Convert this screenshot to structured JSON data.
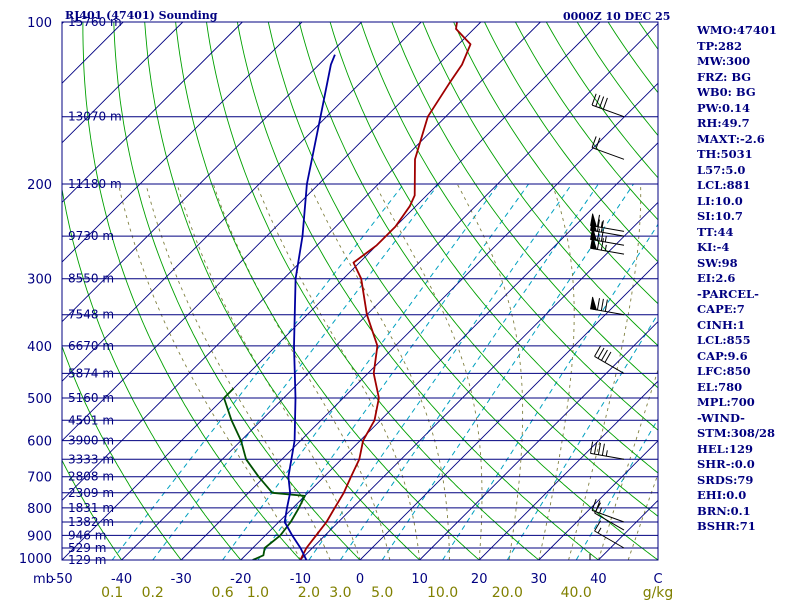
{
  "header": {
    "left": "RJ401 (47401) Sounding",
    "right": "0000Z 10 DEC 25"
  },
  "indices": [
    "WMO:47401",
    "TP:282",
    "MW:300",
    "FRZ: BG",
    "WB0: BG",
    "PW:0.14",
    "RH:49.7",
    "MAXT:-2.6",
    "TH:5031",
    "L57:5.0",
    "LCL:881",
    "LI:10.0",
    "SI:10.7",
    "TT:44",
    "KI:-4",
    "SW:98",
    "EI:2.6",
    "-PARCEL-",
    "CAPE:7",
    "CINH:1",
    "LCL:855",
    "CAP:9.6",
    "LFC:850",
    "EL:780",
    "MPL:700",
    "-WIND-",
    "STM:308/28",
    "HEL:129",
    "SHR-:0.0",
    "SRDS:79",
    "EHI:0.0",
    "BRN:0.1",
    "BSHR:71"
  ],
  "colors": {
    "frame": "#000080",
    "isobar": "#000080",
    "isotherm": "#000080",
    "dry_adiabat": "#00a000",
    "moist_adiabat": "#808040",
    "mixing_ratio": "#00a0c0",
    "temperature": "#a00000",
    "dewpoint": "#005000",
    "parcel": "#0000a0",
    "wind": "#000000",
    "olive_label": "#808000"
  },
  "chart_data": {
    "type": "line",
    "x_unit": "C",
    "y_unit": "mb",
    "y_scale": "log",
    "ylim": [
      1000,
      100
    ],
    "xlim": [
      -50,
      50
    ],
    "pressure_ticks": [
      "100",
      "200",
      "300",
      "400",
      "500",
      "600",
      "700",
      "800",
      "900",
      "1000"
    ],
    "mb_label": "mb",
    "temperature_ticks": [
      "-50",
      "-40",
      "-30",
      "-20",
      "-10",
      "0",
      "10",
      "20",
      "30",
      "40"
    ],
    "temperature_end_label": "C",
    "mixing_ratio_ticks": [
      "0.1",
      "0.2",
      "0.6",
      "1.0",
      "2.0",
      "3.0",
      "5.0",
      "10.0",
      "20.0",
      "40.0"
    ],
    "mixing_ratio_unit": "g/kg",
    "height_labels": [
      {
        "p": 100,
        "label": "15760 m"
      },
      {
        "p": 150,
        "label": "13070 m"
      },
      {
        "p": 200,
        "label": "11180 m"
      },
      {
        "p": 250,
        "label": "9730 m"
      },
      {
        "p": 300,
        "label": "8550 m"
      },
      {
        "p": 350,
        "label": "7548 m"
      },
      {
        "p": 400,
        "label": "6670 m"
      },
      {
        "p": 450,
        "label": "5874 m"
      },
      {
        "p": 500,
        "label": "5160 m"
      },
      {
        "p": 550,
        "label": "4501 m"
      },
      {
        "p": 600,
        "label": "3900 m"
      },
      {
        "p": 650,
        "label": "3333 m"
      },
      {
        "p": 700,
        "label": "2808 m"
      },
      {
        "p": 750,
        "label": "2309 m"
      },
      {
        "p": 800,
        "label": "1831 m"
      },
      {
        "p": 850,
        "label": "1382 m"
      },
      {
        "p": 900,
        "label": "946 m"
      },
      {
        "p": 950,
        "label": "529 m"
      },
      {
        "p": 1000,
        "label": "129 m"
      }
    ],
    "series": [
      {
        "key": "temperature",
        "points": [
          {
            "p": 1000,
            "t": -10
          },
          {
            "p": 950,
            "t": -11
          },
          {
            "p": 900,
            "t": -11.5
          },
          {
            "p": 850,
            "t": -12
          },
          {
            "p": 800,
            "t": -13
          },
          {
            "p": 750,
            "t": -14
          },
          {
            "p": 700,
            "t": -15.5
          },
          {
            "p": 650,
            "t": -17
          },
          {
            "p": 600,
            "t": -19.5
          },
          {
            "p": 550,
            "t": -21
          },
          {
            "p": 500,
            "t": -24
          },
          {
            "p": 450,
            "t": -29
          },
          {
            "p": 400,
            "t": -33
          },
          {
            "p": 350,
            "t": -40
          },
          {
            "p": 300,
            "t": -47
          },
          {
            "p": 280,
            "t": -51
          },
          {
            "p": 260,
            "t": -50
          },
          {
            "p": 240,
            "t": -50
          },
          {
            "p": 220,
            "t": -51
          },
          {
            "p": 210,
            "t": -52
          },
          {
            "p": 180,
            "t": -58
          },
          {
            "p": 150,
            "t": -63
          },
          {
            "p": 130,
            "t": -65
          },
          {
            "p": 120,
            "t": -66
          },
          {
            "p": 110,
            "t": -68
          },
          {
            "p": 103,
            "t": -73
          },
          {
            "p": 100,
            "t": -74
          }
        ]
      },
      {
        "key": "dewpoint",
        "points": [
          {
            "p": 1000,
            "t": -18
          },
          {
            "p": 980,
            "t": -17
          },
          {
            "p": 950,
            "t": -18
          },
          {
            "p": 900,
            "t": -17.5
          },
          {
            "p": 850,
            "t": -18
          },
          {
            "p": 800,
            "t": -19
          },
          {
            "p": 760,
            "t": -20
          },
          {
            "p": 750,
            "t": -26
          },
          {
            "p": 700,
            "t": -31
          },
          {
            "p": 650,
            "t": -36
          },
          {
            "p": 600,
            "t": -40
          },
          {
            "p": 550,
            "t": -45
          },
          {
            "p": 500,
            "t": -50
          },
          {
            "p": 480,
            "t": -50
          }
        ]
      },
      {
        "key": "parcel",
        "points": [
          {
            "p": 1000,
            "t": -9
          },
          {
            "p": 950,
            "t": -12
          },
          {
            "p": 900,
            "t": -15.5
          },
          {
            "p": 850,
            "t": -19
          },
          {
            "p": 800,
            "t": -21
          },
          {
            "p": 750,
            "t": -23
          },
          {
            "p": 700,
            "t": -26
          },
          {
            "p": 600,
            "t": -31
          },
          {
            "p": 500,
            "t": -38
          },
          {
            "p": 400,
            "t": -47
          },
          {
            "p": 300,
            "t": -58
          },
          {
            "p": 250,
            "t": -64
          },
          {
            "p": 200,
            "t": -72
          },
          {
            "p": 150,
            "t": -81
          },
          {
            "p": 120,
            "t": -88
          },
          {
            "p": 115,
            "t": -89
          }
        ]
      }
    ],
    "wind_barbs": [
      {
        "p": 100,
        "dir": 270,
        "speed": 35
      },
      {
        "p": 150,
        "dir": 290,
        "speed": 40
      },
      {
        "p": 180,
        "dir": 290,
        "speed": 20
      },
      {
        "p": 245,
        "dir": 280,
        "speed": 65
      },
      {
        "p": 250,
        "dir": 280,
        "speed": 70
      },
      {
        "p": 260,
        "dir": 280,
        "speed": 75
      },
      {
        "p": 270,
        "dir": 280,
        "speed": 75
      },
      {
        "p": 350,
        "dir": 280,
        "speed": 80
      },
      {
        "p": 450,
        "dir": 300,
        "speed": 40
      },
      {
        "p": 650,
        "dir": 280,
        "speed": 45
      },
      {
        "p": 850,
        "dir": 290,
        "speed": 25
      },
      {
        "p": 880,
        "dir": 300,
        "speed": 10
      },
      {
        "p": 950,
        "dir": 300,
        "speed": 15
      },
      {
        "p": 1000,
        "dir": 270,
        "speed": 5
      }
    ]
  }
}
